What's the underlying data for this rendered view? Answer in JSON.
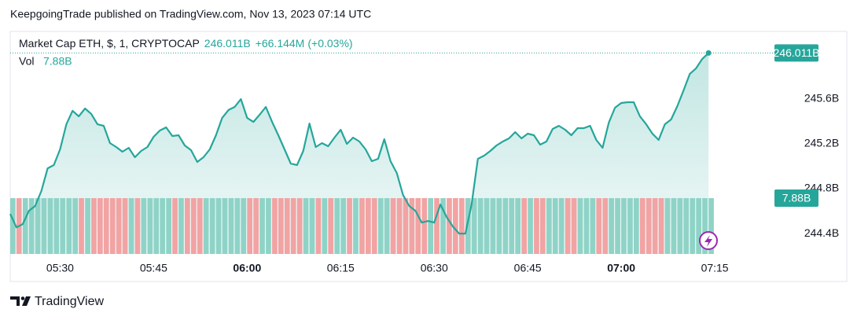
{
  "header": {
    "title": "KeepgoingTrade published on TradingView.com, Nov 13, 2023 07:14 UTC"
  },
  "footer": {
    "brand": "TradingView"
  },
  "chart_data": {
    "type": "area",
    "symbol": "Market Cap ETH, $, 1, CRYPTOCAP",
    "last_label": "246.011B",
    "change": "+66.144M",
    "change_pct": "(+0.03%)",
    "volume_title": "Vol",
    "volume_last_label": "7.88B",
    "color": "#26a69a",
    "up_color": "#8fd3c7",
    "down_color": "#f2a3a3",
    "ylim": [
      244.218,
      246.168
    ],
    "yticks": [
      {
        "value": 244.4,
        "label": "244.4B"
      },
      {
        "value": 244.8,
        "label": "244.8B"
      },
      {
        "value": 245.2,
        "label": "245.2B"
      },
      {
        "value": 245.6,
        "label": "245.6B"
      }
    ],
    "xticks": [
      "05:30",
      "05:45",
      "06:00",
      "06:15",
      "06:30",
      "06:45",
      "07:00",
      "07:15"
    ],
    "vlim": [
      0,
      7.88
    ],
    "x": [
      "05:22",
      "05:23",
      "05:24",
      "05:25",
      "05:26",
      "05:27",
      "05:28",
      "05:29",
      "05:30",
      "05:31",
      "05:32",
      "05:33",
      "05:34",
      "05:35",
      "05:36",
      "05:37",
      "05:38",
      "05:39",
      "05:40",
      "05:41",
      "05:42",
      "05:43",
      "05:44",
      "05:45",
      "05:46",
      "05:47",
      "05:48",
      "05:49",
      "05:50",
      "05:51",
      "05:52",
      "05:53",
      "05:54",
      "05:55",
      "05:56",
      "05:57",
      "05:58",
      "05:59",
      "06:00",
      "06:01",
      "06:02",
      "06:03",
      "06:04",
      "06:05",
      "06:06",
      "06:07",
      "06:08",
      "06:09",
      "06:10",
      "06:11",
      "06:12",
      "06:13",
      "06:14",
      "06:15",
      "06:16",
      "06:17",
      "06:18",
      "06:19",
      "06:20",
      "06:21",
      "06:22",
      "06:23",
      "06:24",
      "06:25",
      "06:26",
      "06:27",
      "06:28",
      "06:29",
      "06:30",
      "06:31",
      "06:32",
      "06:33",
      "06:34",
      "06:35",
      "06:36",
      "06:37",
      "06:38",
      "06:39",
      "06:40",
      "06:41",
      "06:42",
      "06:43",
      "06:44",
      "06:45",
      "06:46",
      "06:47",
      "06:48",
      "06:49",
      "06:50",
      "06:51",
      "06:52",
      "06:53",
      "06:54",
      "06:55",
      "06:56",
      "06:57",
      "06:58",
      "06:59",
      "07:00",
      "07:01",
      "07:02",
      "07:03",
      "07:04",
      "07:05",
      "07:06",
      "07:07",
      "07:08",
      "07:09",
      "07:10",
      "07:11",
      "07:12",
      "07:13",
      "07:14"
    ],
    "values": [
      244.575,
      244.456,
      244.484,
      244.603,
      244.646,
      244.779,
      244.982,
      245.011,
      245.151,
      245.375,
      245.495,
      245.446,
      245.516,
      245.467,
      245.375,
      245.361,
      245.207,
      245.172,
      245.13,
      245.165,
      245.081,
      245.137,
      245.172,
      245.263,
      245.319,
      245.347,
      245.27,
      245.277,
      245.186,
      245.144,
      245.039,
      245.081,
      245.151,
      245.277,
      245.432,
      245.502,
      245.53,
      245.6,
      245.432,
      245.396,
      245.46,
      245.53,
      245.396,
      245.277,
      245.151,
      245.025,
      245.011,
      245.137,
      245.382,
      245.172,
      245.207,
      245.179,
      245.256,
      245.326,
      245.2,
      245.256,
      245.221,
      245.151,
      245.046,
      245.067,
      245.242,
      245.046,
      244.94,
      244.744,
      244.646,
      244.603,
      244.498,
      244.512,
      244.498,
      244.66,
      244.547,
      244.463,
      244.4,
      244.4,
      244.66,
      245.067,
      245.095,
      245.137,
      245.186,
      245.221,
      245.249,
      245.305,
      245.249,
      245.291,
      245.277,
      245.193,
      245.221,
      245.333,
      245.361,
      245.326,
      245.277,
      245.34,
      245.34,
      245.361,
      245.235,
      245.165,
      245.389,
      245.523,
      245.565,
      245.572,
      245.572,
      245.446,
      245.375,
      245.291,
      245.235,
      245.375,
      245.418,
      245.537,
      245.677,
      245.825,
      245.874,
      245.958,
      246.011
    ],
    "volume": [
      7.88,
      7.88,
      7.88,
      7.88,
      7.88,
      7.88,
      7.88,
      7.88,
      7.88,
      7.88,
      7.88,
      7.88,
      7.88,
      7.88,
      7.88,
      7.88,
      7.88,
      7.88,
      7.88,
      7.88,
      7.88,
      7.88,
      7.88,
      7.88,
      7.88,
      7.88,
      7.88,
      7.88,
      7.88,
      7.88,
      7.88,
      7.88,
      7.88,
      7.88,
      7.88,
      7.88,
      7.88,
      7.88,
      7.88,
      7.88,
      7.88,
      7.88,
      7.88,
      7.88,
      7.88,
      7.88,
      7.88,
      7.88,
      7.88,
      7.88,
      7.88,
      7.88,
      7.88,
      7.88,
      7.88,
      7.88,
      7.88,
      7.88,
      7.88,
      7.88,
      7.88,
      7.88,
      7.88,
      7.88,
      7.88,
      7.88,
      7.88,
      7.88,
      7.88,
      7.88,
      7.88,
      7.88,
      7.88,
      7.88,
      7.88,
      7.88,
      7.88,
      7.88,
      7.88,
      7.88,
      7.88,
      7.88,
      7.88,
      7.88,
      7.88,
      7.88,
      7.88,
      7.88,
      7.88,
      7.88,
      7.88,
      7.88,
      7.88,
      7.88,
      7.88,
      7.88,
      7.88,
      7.88,
      7.88,
      7.88,
      7.88,
      7.88,
      7.88,
      7.88,
      7.88,
      7.88,
      7.88,
      7.88,
      7.88,
      7.88,
      7.88,
      7.88,
      7.88
    ]
  }
}
